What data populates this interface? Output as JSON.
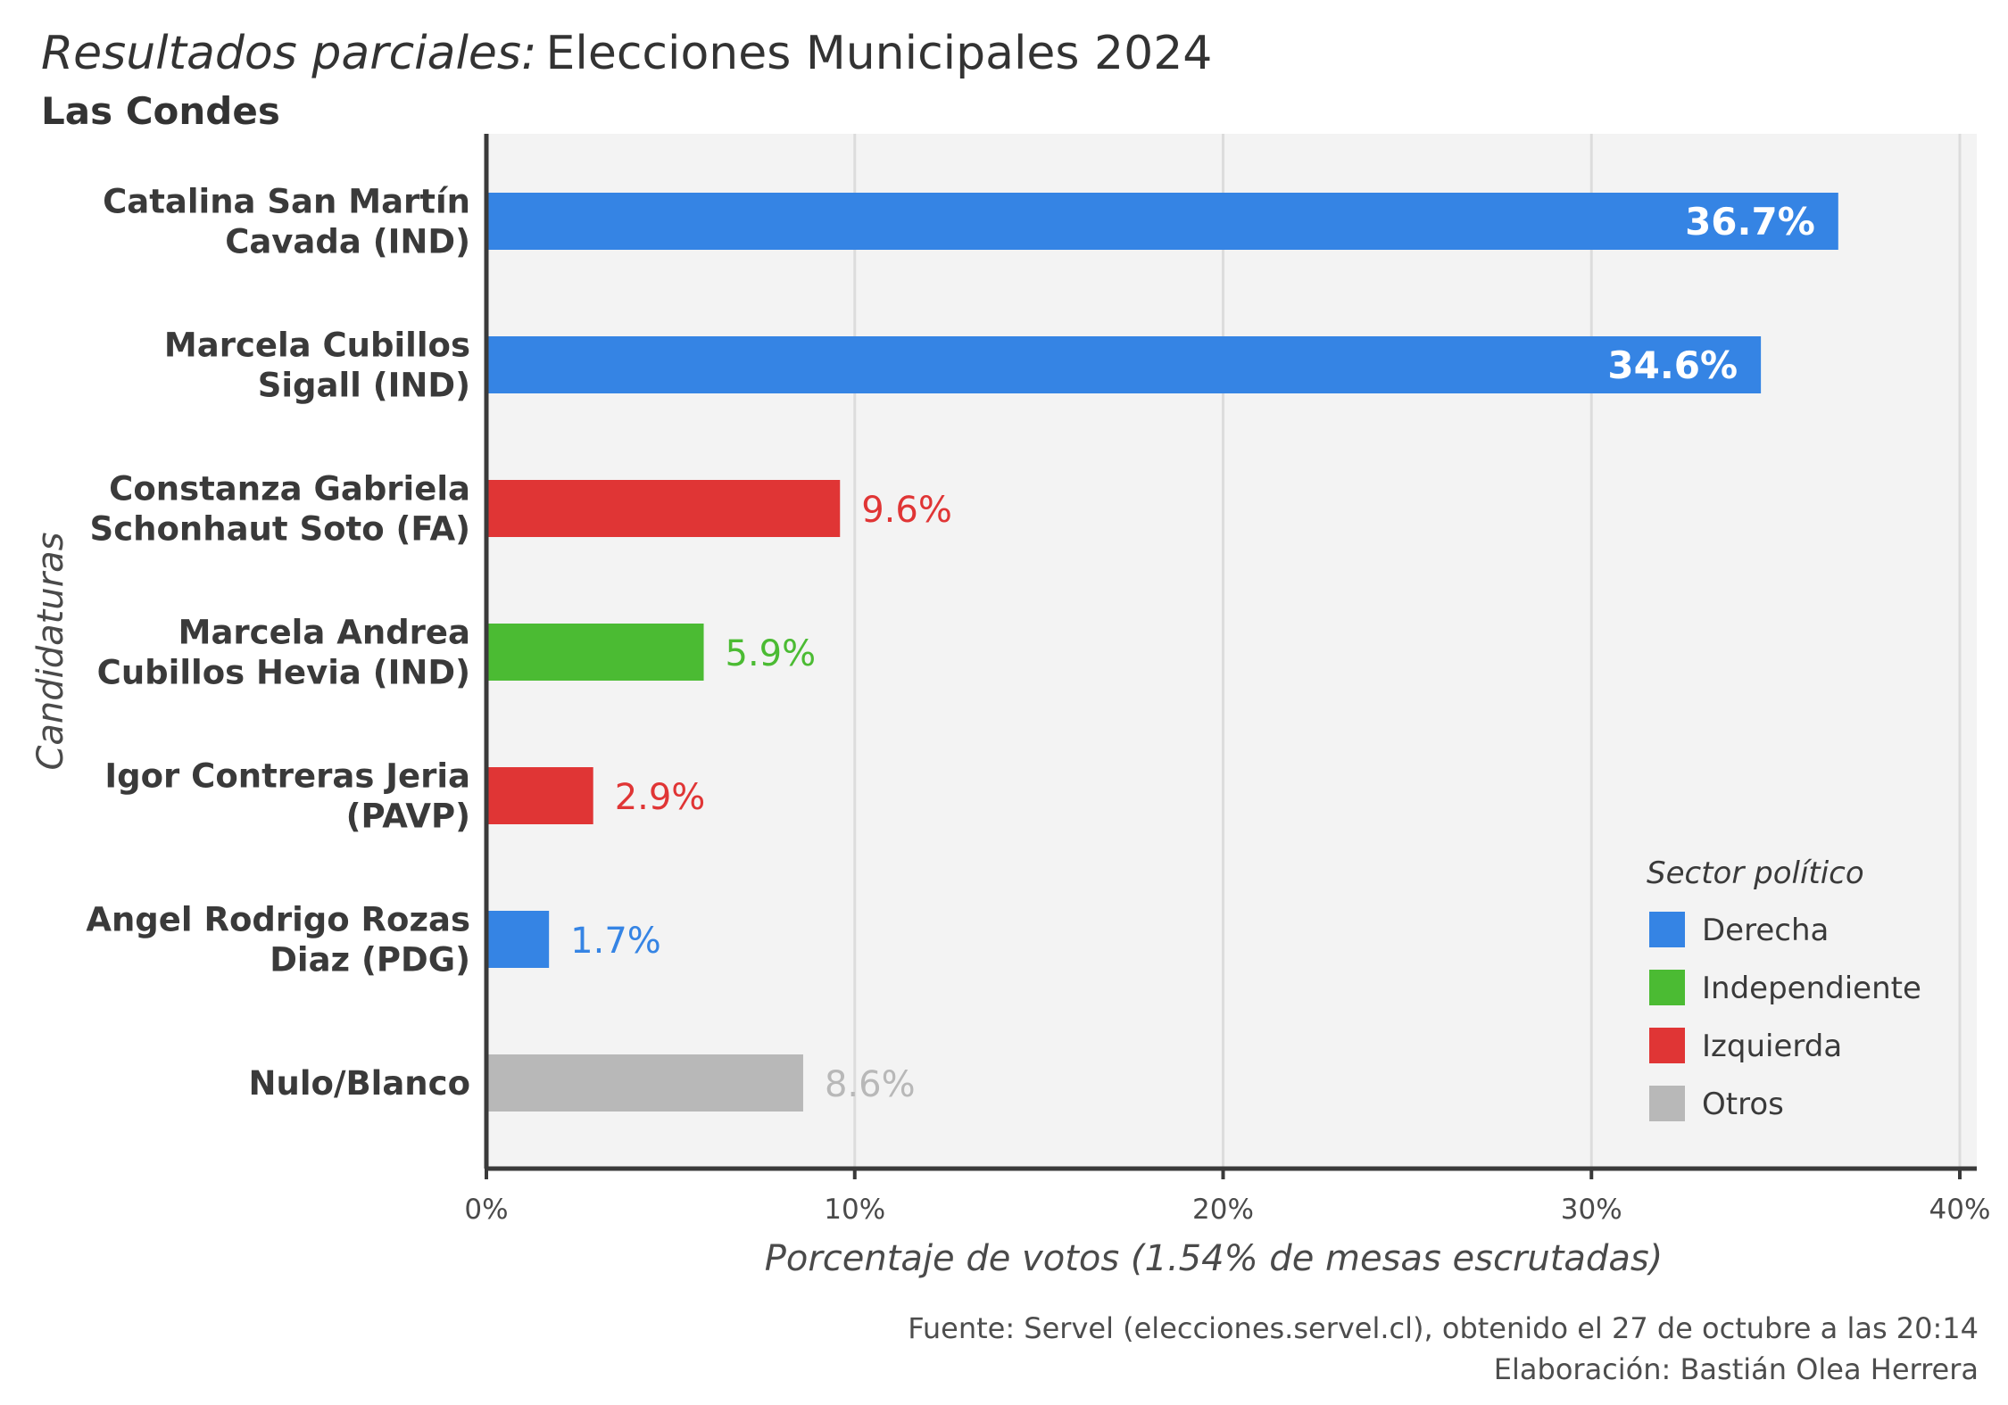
{
  "title": {
    "prefix": "Resultados  parciales:",
    "main": "Elecciones Municipales 2024"
  },
  "subtitle": "Las Condes",
  "caption": {
    "line1": "Fuente: Servel (elecciones.servel.cl), obtenido el 27 de octubre a las 20:14",
    "line2": "Elaboración: Bastián Olea Herrera"
  },
  "chart_data": {
    "type": "bar",
    "orientation": "horizontal",
    "categories": [
      [
        "Catalina San Martín",
        "Cavada (IND)"
      ],
      [
        "Marcela Cubillos",
        "Sigall (IND)"
      ],
      [
        "Constanza Gabriela",
        "Schonhaut Soto (FA)"
      ],
      [
        "Marcela Andrea",
        "Cubillos Hevia (IND)"
      ],
      [
        "Igor Contreras Jeria",
        "(PAVP)"
      ],
      [
        "Angel Rodrigo Rozas",
        "Diaz (PDG)"
      ],
      [
        "Nulo/Blanco"
      ]
    ],
    "values": [
      36.7,
      34.6,
      9.6,
      5.9,
      2.9,
      1.7,
      8.6
    ],
    "value_labels": [
      "36.7%",
      "34.6%",
      "9.6%",
      "5.9%",
      "2.9%",
      "1.7%",
      "8.6%"
    ],
    "sectors": [
      "Derecha",
      "Derecha",
      "Izquierda",
      "Independiente",
      "Izquierda",
      "Derecha",
      "Otros"
    ],
    "xlabel": "Porcentaje de votos (1.54% de mesas escrutadas)",
    "ylabel": "Candidaturas",
    "xlim": [
      0,
      40
    ],
    "xticks": [
      0,
      10,
      20,
      30,
      40
    ],
    "xtick_labels": [
      "0%",
      "10%",
      "20%",
      "30%",
      "40%"
    ],
    "grid": true,
    "legend": {
      "title": "Sector político",
      "position": "bottom-right",
      "items": [
        {
          "name": "Derecha",
          "color": "#3584e4"
        },
        {
          "name": "Independiente",
          "color": "#4bbb33"
        },
        {
          "name": "Izquierda",
          "color": "#e03535"
        },
        {
          "name": "Otros",
          "color": "#b8b8b8"
        }
      ]
    },
    "colors": {
      "Derecha": "#3584e4",
      "Independiente": "#4bbb33",
      "Izquierda": "#e03535",
      "Otros": "#b8b8b8"
    }
  }
}
